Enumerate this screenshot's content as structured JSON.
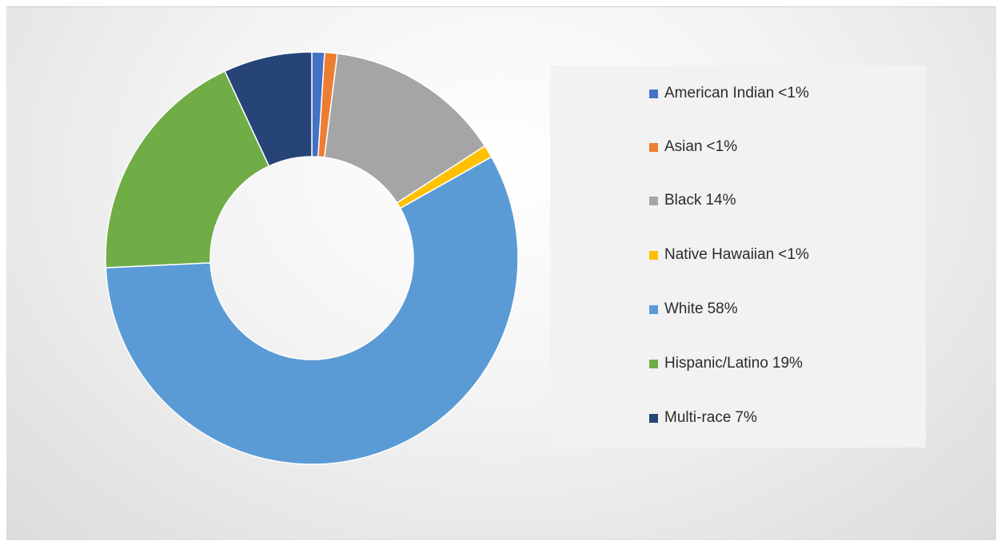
{
  "chart_data": {
    "type": "pie",
    "variant": "donut",
    "legend_position": "right",
    "series": [
      {
        "name": "American Indian",
        "label": "<1%",
        "value": 1,
        "color": "#4472c4"
      },
      {
        "name": "Asian",
        "label": "<1%",
        "value": 1,
        "color": "#ed7d31"
      },
      {
        "name": "Black",
        "label": "14%",
        "value": 14,
        "color": "#a5a5a5"
      },
      {
        "name": "Native Hawaiian",
        "label": "<1%",
        "value": 1,
        "color": "#ffc000"
      },
      {
        "name": "White",
        "label": "58%",
        "value": 58,
        "color": "#5b9bd5"
      },
      {
        "name": "Hispanic/Latino",
        "label": "19%",
        "value": 19,
        "color": "#70ad47"
      },
      {
        "name": "Multi-race",
        "label": "7%",
        "value": 7,
        "color": "#264478"
      }
    ]
  }
}
